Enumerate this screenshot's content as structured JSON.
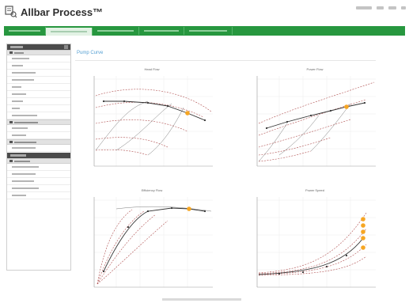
{
  "app": {
    "title": "Allbar Process™"
  },
  "colors": {
    "brand_green": "#27973f",
    "accent_orange": "#f6a623",
    "title_blue": "#56a0d3",
    "sidebar_dark": "#4b4b4b"
  },
  "main": {
    "title": "Pump Curve"
  },
  "charts": [
    {
      "title": "Head Flow"
    },
    {
      "title": "Power Flow"
    },
    {
      "title": "Efficiency Flow"
    },
    {
      "title": "Power Speed"
    }
  ]
}
